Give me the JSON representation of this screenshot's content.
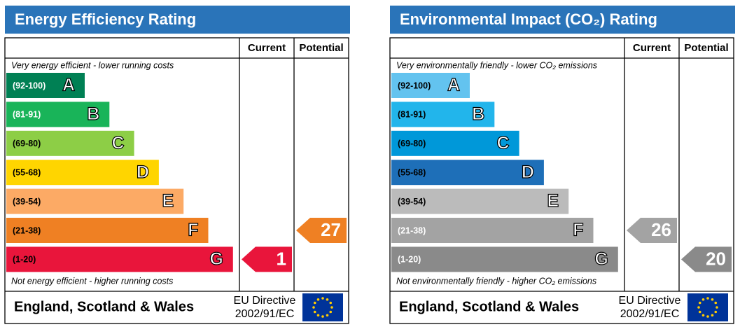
{
  "panels": [
    {
      "title": "Energy Efficiency Rating",
      "headers": [
        "Current",
        "Potential"
      ],
      "top_note": "Very energy efficient - lower running costs",
      "bottom_note": "Not energy efficient - higher running costs",
      "bands": [
        {
          "range": "(92-100)",
          "letter": "A",
          "color": "#008054",
          "text_color": "#ffffff"
        },
        {
          "range": "(81-91)",
          "letter": "B",
          "color": "#19b459",
          "text_color": "#ffffff"
        },
        {
          "range": "(69-80)",
          "letter": "C",
          "color": "#8dce46",
          "text_color": "#000000"
        },
        {
          "range": "(55-68)",
          "letter": "D",
          "color": "#ffd500",
          "text_color": "#000000"
        },
        {
          "range": "(39-54)",
          "letter": "E",
          "color": "#fcaa65",
          "text_color": "#000000"
        },
        {
          "range": "(21-38)",
          "letter": "F",
          "color": "#ef8023",
          "text_color": "#000000"
        },
        {
          "range": "(1-20)",
          "letter": "G",
          "color": "#e9153b",
          "text_color": "#000000"
        }
      ],
      "current": 1,
      "potential": 27,
      "region": "England, Scotland & Wales",
      "directive": [
        "EU Directive",
        "2002/91/EC"
      ]
    },
    {
      "title": "Environmental Impact (CO₂) Rating",
      "headers": [
        "Current",
        "Potential"
      ],
      "top_note": "Very environmentally friendly - lower CO₂ emissions",
      "bottom_note": "Not environmentally friendly - higher CO₂ emissions",
      "bands": [
        {
          "range": "(92-100)",
          "letter": "A",
          "color": "#63c3ef",
          "text_color": "#000000"
        },
        {
          "range": "(81-91)",
          "letter": "B",
          "color": "#22b5eb",
          "text_color": "#000000"
        },
        {
          "range": "(69-80)",
          "letter": "C",
          "color": "#0098d9",
          "text_color": "#000000"
        },
        {
          "range": "(55-68)",
          "letter": "D",
          "color": "#1e6fb8",
          "text_color": "#000000"
        },
        {
          "range": "(39-54)",
          "letter": "E",
          "color": "#bbbbbb",
          "text_color": "#000000"
        },
        {
          "range": "(21-38)",
          "letter": "F",
          "color": "#a3a3a3",
          "text_color": "#ffffff"
        },
        {
          "range": "(1-20)",
          "letter": "G",
          "color": "#8a8a8a",
          "text_color": "#ffffff"
        }
      ],
      "current": 26,
      "potential": 20,
      "region": "England, Scotland & Wales",
      "directive": [
        "EU Directive",
        "2002/91/EC"
      ]
    }
  ]
}
